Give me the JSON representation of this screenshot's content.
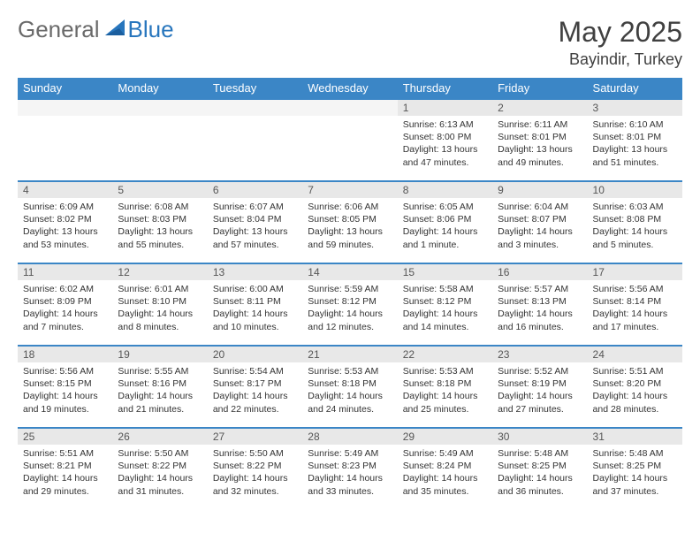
{
  "brand": {
    "general": "General",
    "blue": "Blue"
  },
  "title": {
    "month": "May 2025",
    "location": "Bayindir, Turkey"
  },
  "colors": {
    "headerBg": "#3b86c6",
    "dayBg": "#e8e8e8",
    "border": "#3b86c6",
    "text": "#333333"
  },
  "weekdays": [
    "Sunday",
    "Monday",
    "Tuesday",
    "Wednesday",
    "Thursday",
    "Friday",
    "Saturday"
  ],
  "weeks": [
    [
      null,
      null,
      null,
      null,
      {
        "n": "1",
        "r": "6:13 AM",
        "s": "8:00 PM",
        "d": "13 hours and 47 minutes."
      },
      {
        "n": "2",
        "r": "6:11 AM",
        "s": "8:01 PM",
        "d": "13 hours and 49 minutes."
      },
      {
        "n": "3",
        "r": "6:10 AM",
        "s": "8:01 PM",
        "d": "13 hours and 51 minutes."
      }
    ],
    [
      {
        "n": "4",
        "r": "6:09 AM",
        "s": "8:02 PM",
        "d": "13 hours and 53 minutes."
      },
      {
        "n": "5",
        "r": "6:08 AM",
        "s": "8:03 PM",
        "d": "13 hours and 55 minutes."
      },
      {
        "n": "6",
        "r": "6:07 AM",
        "s": "8:04 PM",
        "d": "13 hours and 57 minutes."
      },
      {
        "n": "7",
        "r": "6:06 AM",
        "s": "8:05 PM",
        "d": "13 hours and 59 minutes."
      },
      {
        "n": "8",
        "r": "6:05 AM",
        "s": "8:06 PM",
        "d": "14 hours and 1 minute."
      },
      {
        "n": "9",
        "r": "6:04 AM",
        "s": "8:07 PM",
        "d": "14 hours and 3 minutes."
      },
      {
        "n": "10",
        "r": "6:03 AM",
        "s": "8:08 PM",
        "d": "14 hours and 5 minutes."
      }
    ],
    [
      {
        "n": "11",
        "r": "6:02 AM",
        "s": "8:09 PM",
        "d": "14 hours and 7 minutes."
      },
      {
        "n": "12",
        "r": "6:01 AM",
        "s": "8:10 PM",
        "d": "14 hours and 8 minutes."
      },
      {
        "n": "13",
        "r": "6:00 AM",
        "s": "8:11 PM",
        "d": "14 hours and 10 minutes."
      },
      {
        "n": "14",
        "r": "5:59 AM",
        "s": "8:12 PM",
        "d": "14 hours and 12 minutes."
      },
      {
        "n": "15",
        "r": "5:58 AM",
        "s": "8:12 PM",
        "d": "14 hours and 14 minutes."
      },
      {
        "n": "16",
        "r": "5:57 AM",
        "s": "8:13 PM",
        "d": "14 hours and 16 minutes."
      },
      {
        "n": "17",
        "r": "5:56 AM",
        "s": "8:14 PM",
        "d": "14 hours and 17 minutes."
      }
    ],
    [
      {
        "n": "18",
        "r": "5:56 AM",
        "s": "8:15 PM",
        "d": "14 hours and 19 minutes."
      },
      {
        "n": "19",
        "r": "5:55 AM",
        "s": "8:16 PM",
        "d": "14 hours and 21 minutes."
      },
      {
        "n": "20",
        "r": "5:54 AM",
        "s": "8:17 PM",
        "d": "14 hours and 22 minutes."
      },
      {
        "n": "21",
        "r": "5:53 AM",
        "s": "8:18 PM",
        "d": "14 hours and 24 minutes."
      },
      {
        "n": "22",
        "r": "5:53 AM",
        "s": "8:18 PM",
        "d": "14 hours and 25 minutes."
      },
      {
        "n": "23",
        "r": "5:52 AM",
        "s": "8:19 PM",
        "d": "14 hours and 27 minutes."
      },
      {
        "n": "24",
        "r": "5:51 AM",
        "s": "8:20 PM",
        "d": "14 hours and 28 minutes."
      }
    ],
    [
      {
        "n": "25",
        "r": "5:51 AM",
        "s": "8:21 PM",
        "d": "14 hours and 29 minutes."
      },
      {
        "n": "26",
        "r": "5:50 AM",
        "s": "8:22 PM",
        "d": "14 hours and 31 minutes."
      },
      {
        "n": "27",
        "r": "5:50 AM",
        "s": "8:22 PM",
        "d": "14 hours and 32 minutes."
      },
      {
        "n": "28",
        "r": "5:49 AM",
        "s": "8:23 PM",
        "d": "14 hours and 33 minutes."
      },
      {
        "n": "29",
        "r": "5:49 AM",
        "s": "8:24 PM",
        "d": "14 hours and 35 minutes."
      },
      {
        "n": "30",
        "r": "5:48 AM",
        "s": "8:25 PM",
        "d": "14 hours and 36 minutes."
      },
      {
        "n": "31",
        "r": "5:48 AM",
        "s": "8:25 PM",
        "d": "14 hours and 37 minutes."
      }
    ]
  ],
  "labels": {
    "sunrise": "Sunrise: ",
    "sunset": "Sunset: ",
    "daylight": "Daylight: "
  }
}
